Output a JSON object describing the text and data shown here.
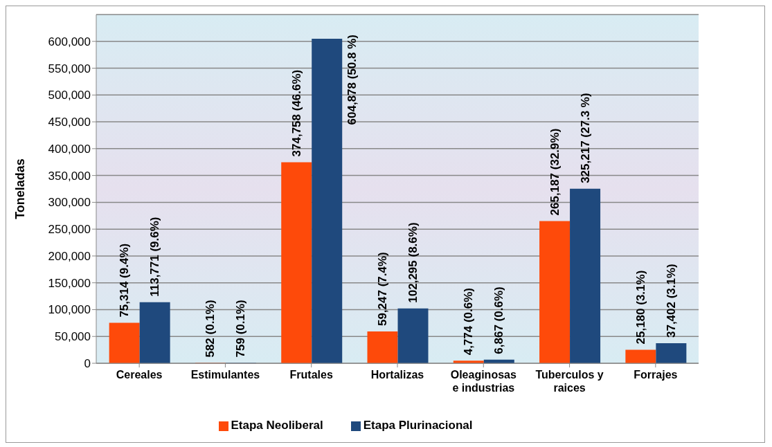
{
  "chart_data": {
    "type": "bar",
    "ylabel": "Toneladas",
    "categories": [
      "Cereales",
      "Estimulantes",
      "Frutales",
      "Hortalizas",
      "Oleaginosas e industrias",
      "Tuberculos y raices",
      "Forrajes"
    ],
    "series": [
      {
        "name": "Etapa Neoliberal",
        "color": "#fe4a0a",
        "values": [
          75314,
          582,
          374758,
          59247,
          4774,
          265187,
          25180
        ],
        "value_labels": [
          "75,314 (9.4%)",
          "582 (0.1%)",
          "374,758 (46.6%)",
          "59,247 (7.4%)",
          "4,774 (0.6%)",
          "265,187 (32.9%)",
          "25,180 (3.1%)"
        ]
      },
      {
        "name": "Etapa Plurinacional",
        "color": "#1f497d",
        "values": [
          113771,
          759,
          604878,
          102295,
          6867,
          325217,
          37402
        ],
        "value_labels": [
          "113,771 (9.6%)",
          "759 (0.1%)",
          "604,878 (50.8 %)",
          "102,295 (8.6%)",
          "6,867 (0.6%)",
          "325,217 (27.3 %)",
          "37,402 (3.1%)"
        ]
      }
    ],
    "ylim": [
      0,
      650000
    ],
    "yticks": [
      0,
      {
        "value": 50000,
        "label": "50,000"
      },
      {
        "value": 100000,
        "label": "100,000"
      },
      {
        "value": 150000,
        "label": "150,000"
      },
      {
        "value": 200000,
        "label": "200,000"
      },
      {
        "value": 250000,
        "label": "250,000"
      },
      {
        "value": 300000,
        "label": "300,000"
      },
      {
        "value": 350000,
        "label": "350,000"
      },
      {
        "value": 400000,
        "label": "400,000"
      },
      {
        "value": 450000,
        "label": "450,000"
      },
      {
        "value": 500000,
        "label": "500,000"
      },
      {
        "value": 550000,
        "label": "550,000"
      },
      {
        "value": 600000,
        "label": "600,000"
      }
    ],
    "grid": "y",
    "legend": "bottom"
  }
}
